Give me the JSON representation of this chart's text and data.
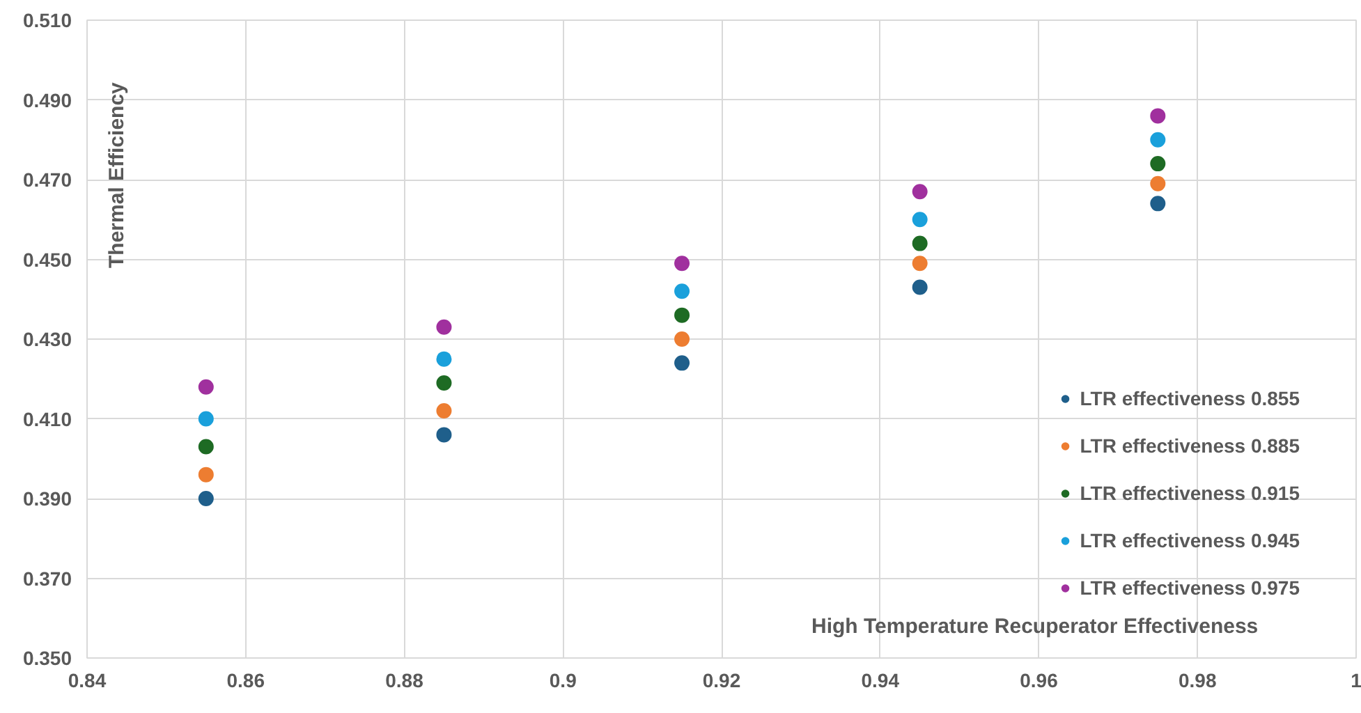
{
  "chart_data": {
    "type": "scatter",
    "xlabel": "High Temperature Recuperator Effectiveness",
    "ylabel": "Thermal Efficiency",
    "xlim": [
      0.84,
      1.0
    ],
    "ylim": [
      0.35,
      0.51
    ],
    "xticks": [
      0.84,
      0.86,
      0.88,
      0.9,
      0.92,
      0.94,
      0.96,
      0.98,
      1
    ],
    "yticks": [
      {
        "value": 0.35,
        "label": "0.350"
      },
      {
        "value": 0.37,
        "label": "0.370"
      },
      {
        "value": 0.39,
        "label": "0.390"
      },
      {
        "value": 0.41,
        "label": "0.410"
      },
      {
        "value": 0.43,
        "label": "0.430"
      },
      {
        "value": 0.45,
        "label": "0.450"
      },
      {
        "value": 0.47,
        "label": "0.470"
      },
      {
        "value": 0.49,
        "label": "0.490"
      },
      {
        "value": 0.51,
        "label": "0.510"
      }
    ],
    "x": [
      0.855,
      0.885,
      0.915,
      0.945,
      0.975
    ],
    "series": [
      {
        "name": "LTR effectiveness 0.855",
        "color": "#1f5f8b",
        "values": [
          0.39,
          0.406,
          0.424,
          0.443,
          0.464
        ]
      },
      {
        "name": "LTR effectiveness 0.885",
        "color": "#ed7d31",
        "values": [
          0.396,
          0.412,
          0.43,
          0.449,
          0.469
        ]
      },
      {
        "name": "LTR effectiveness 0.915",
        "color": "#1e6b24",
        "values": [
          0.403,
          0.419,
          0.436,
          0.454,
          0.474
        ]
      },
      {
        "name": "LTR effectiveness 0.945",
        "color": "#1aa0db",
        "values": [
          0.41,
          0.425,
          0.442,
          0.46,
          0.48
        ]
      },
      {
        "name": "LTR effectiveness 0.975",
        "color": "#a0309e",
        "values": [
          0.418,
          0.433,
          0.449,
          0.467,
          0.486
        ]
      }
    ],
    "marker": "circle",
    "grid": true,
    "legend": "right"
  }
}
